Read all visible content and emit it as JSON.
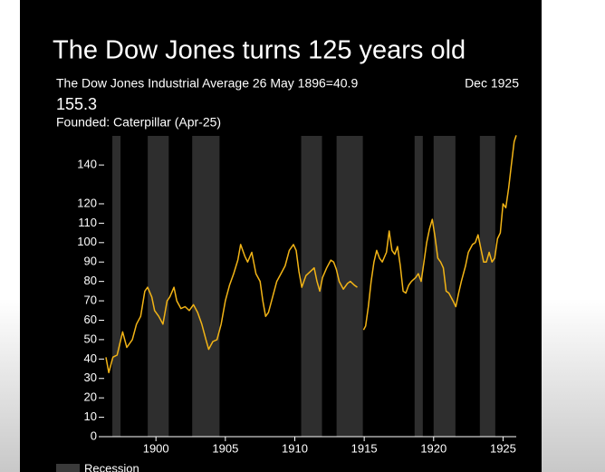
{
  "chart_data": {
    "type": "line",
    "title": "The Dow Jones turns 125 years old",
    "subtitle": "The Dow Jones Industrial Average 26 May 1896=40.9",
    "current_date": "Dec 1925",
    "current_value": 155.3,
    "founded": "Founded: Caterpillar (Apr-25)",
    "color": "#f2b416",
    "x": [
      1896.4,
      1896.6,
      1896.9,
      1897.2,
      1897.6,
      1897.9,
      1898.3,
      1898.6,
      1898.9,
      1899.2,
      1899.4,
      1899.7,
      1899.9,
      1900.2,
      1900.5,
      1900.8,
      1901.0,
      1901.3,
      1901.5,
      1901.8,
      1902.1,
      1902.4,
      1902.7,
      1903.0,
      1903.3,
      1903.6,
      1903.8,
      1904.1,
      1904.4,
      1904.7,
      1905.0,
      1905.3,
      1905.6,
      1905.9,
      1906.1,
      1906.4,
      1906.6,
      1906.9,
      1907.2,
      1907.5,
      1907.7,
      1907.9,
      1908.1,
      1908.4,
      1908.7,
      1909.0,
      1909.3,
      1909.6,
      1909.9,
      1910.1,
      1910.3,
      1910.5,
      1910.8,
      1911.1,
      1911.4,
      1911.6,
      1911.8,
      1912.0,
      1912.3,
      1912.6,
      1912.8,
      1913.0,
      1913.2,
      1913.5,
      1913.8,
      1914.0,
      1914.3,
      1914.5,
      1914.75,
      1914.95,
      1915.1,
      1915.3,
      1915.5,
      1915.7,
      1915.9,
      1916.1,
      1916.3,
      1916.6,
      1916.8,
      1917.0,
      1917.2,
      1917.4,
      1917.6,
      1917.8,
      1918.0,
      1918.2,
      1918.4,
      1918.7,
      1918.9,
      1919.1,
      1919.3,
      1919.5,
      1919.7,
      1919.9,
      1920.1,
      1920.3,
      1920.5,
      1920.7,
      1920.9,
      1921.1,
      1921.4,
      1921.6,
      1921.8,
      1922.0,
      1922.3,
      1922.5,
      1922.8,
      1923.0,
      1923.2,
      1923.4,
      1923.6,
      1923.8,
      1924.0,
      1924.2,
      1924.4,
      1924.6,
      1924.8,
      1925.0,
      1925.2,
      1925.4,
      1925.6,
      1925.8,
      1925.95
    ],
    "values": [
      40.9,
      33,
      41,
      42,
      54,
      46,
      50,
      58,
      62,
      75,
      77,
      72,
      65,
      62,
      58,
      70,
      72,
      77,
      70,
      66,
      67,
      65,
      68,
      64,
      58,
      50,
      45,
      49,
      50,
      58,
      70,
      78,
      84,
      91,
      99,
      93,
      90,
      95,
      84,
      80,
      70,
      62,
      64,
      72,
      80,
      84,
      88,
      96,
      99,
      96,
      85,
      77,
      83,
      85,
      87,
      80,
      75,
      82,
      87,
      91,
      90,
      86,
      80,
      76,
      79,
      80,
      78,
      77,
      null,
      55,
      57,
      67,
      80,
      90,
      96,
      92,
      90,
      95,
      106,
      96,
      94,
      98,
      88,
      75,
      74,
      78,
      80,
      82,
      84,
      80,
      90,
      100,
      107,
      112,
      103,
      92,
      90,
      87,
      75,
      74,
      70,
      67,
      74,
      80,
      88,
      95,
      99,
      100,
      104,
      97,
      90,
      90,
      95,
      90,
      92,
      102,
      105,
      120,
      118,
      128,
      140,
      152,
      155.3
    ],
    "recessions": {
      "name": "Recession",
      "color": "#2e2e2e",
      "periods": [
        [
          1896.86,
          1897.45
        ],
        [
          1899.41,
          1900.92
        ],
        [
          1902.61,
          1904.58
        ],
        [
          1910.46,
          1911.96
        ],
        [
          1913.01,
          1914.9
        ],
        [
          1918.63,
          1919.22
        ],
        [
          1920.0,
          1921.57
        ],
        [
          1923.33,
          1924.44
        ]
      ]
    },
    "xlim": [
      1896.4,
      1925.95
    ],
    "xticks": [
      1900,
      1905,
      1910,
      1915,
      1920,
      1925
    ],
    "ylim": [
      0,
      155
    ],
    "yticks": [
      0,
      10,
      20,
      30,
      40,
      50,
      60,
      70,
      80,
      90,
      100,
      110,
      120,
      140
    ]
  }
}
